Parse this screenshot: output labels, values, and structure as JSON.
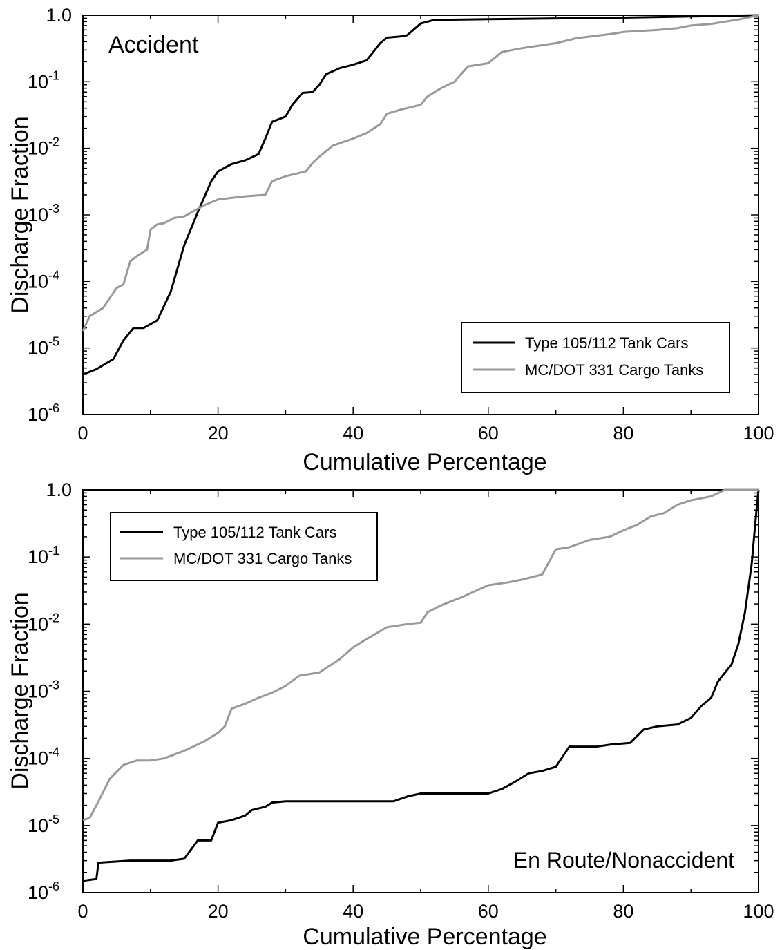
{
  "chart_data": [
    {
      "type": "line",
      "annotation": "Accident",
      "xlabel": "Cumulative Percentage",
      "ylabel": "Discharge Fraction",
      "xlim": [
        0,
        100
      ],
      "ylim": [
        1e-06,
        1.0
      ],
      "yscale": "log",
      "xticks": [
        0,
        20,
        40,
        60,
        80,
        100
      ],
      "xtick_labels": [
        "0",
        "20",
        "40",
        "60",
        "80",
        "100"
      ],
      "yticks": [
        {
          "value": 1e-06,
          "base": "10",
          "exp": "-6"
        },
        {
          "value": 1e-05,
          "base": "10",
          "exp": "-5"
        },
        {
          "value": 0.0001,
          "base": "10",
          "exp": "-4"
        },
        {
          "value": 0.001,
          "base": "10",
          "exp": "-3"
        },
        {
          "value": 0.01,
          "base": "10",
          "exp": "-2"
        },
        {
          "value": 0.1,
          "base": "10",
          "exp": "-1"
        },
        {
          "value": 1.0,
          "base": "1.0",
          "exp": ""
        }
      ],
      "legend_position": "lower-right",
      "series": [
        {
          "name": "Type 105/112 Tank Cars",
          "color": "#000000",
          "points": [
            [
              0,
              4e-06
            ],
            [
              2,
              4.8e-06
            ],
            [
              4.5,
              6.8e-06
            ],
            [
              6,
              1.3e-05
            ],
            [
              7.5,
              2e-05
            ],
            [
              9,
              2e-05
            ],
            [
              11,
              2.6e-05
            ],
            [
              13,
              7e-05
            ],
            [
              15,
              0.00035
            ],
            [
              17,
              0.0011
            ],
            [
              19,
              0.0032
            ],
            [
              20,
              0.0045
            ],
            [
              22,
              0.0058
            ],
            [
              24,
              0.0066
            ],
            [
              26,
              0.0082
            ],
            [
              27,
              0.014
            ],
            [
              28,
              0.025
            ],
            [
              30,
              0.03
            ],
            [
              31,
              0.045
            ],
            [
              32.5,
              0.068
            ],
            [
              34,
              0.07
            ],
            [
              35,
              0.09
            ],
            [
              36,
              0.13
            ],
            [
              38,
              0.16
            ],
            [
              40,
              0.18
            ],
            [
              42,
              0.21
            ],
            [
              44,
              0.38
            ],
            [
              45,
              0.46
            ],
            [
              47,
              0.48
            ],
            [
              48,
              0.5
            ],
            [
              50,
              0.75
            ],
            [
              52,
              0.85
            ],
            [
              60,
              0.87
            ],
            [
              80,
              0.92
            ],
            [
              100,
              1.0
            ]
          ]
        },
        {
          "name": "MC/DOT 331 Cargo Tanks",
          "color": "#999999",
          "points": [
            [
              0,
              1.8e-05
            ],
            [
              1,
              3e-05
            ],
            [
              3,
              4e-05
            ],
            [
              5,
              8e-05
            ],
            [
              6,
              9e-05
            ],
            [
              7,
              0.0002
            ],
            [
              8,
              0.00024
            ],
            [
              9.5,
              0.0003
            ],
            [
              10,
              0.0006
            ],
            [
              11,
              0.00072
            ],
            [
              12,
              0.00075
            ],
            [
              13.5,
              0.0009
            ],
            [
              15,
              0.00095
            ],
            [
              18,
              0.0014
            ],
            [
              20,
              0.0017
            ],
            [
              22,
              0.0018
            ],
            [
              24,
              0.0019
            ],
            [
              27,
              0.002
            ],
            [
              28,
              0.0032
            ],
            [
              30,
              0.0038
            ],
            [
              33,
              0.0045
            ],
            [
              34,
              0.006
            ],
            [
              35,
              0.0075
            ],
            [
              37,
              0.011
            ],
            [
              40,
              0.014
            ],
            [
              42,
              0.017
            ],
            [
              44,
              0.023
            ],
            [
              45,
              0.033
            ],
            [
              47,
              0.038
            ],
            [
              50,
              0.045
            ],
            [
              51,
              0.06
            ],
            [
              53,
              0.08
            ],
            [
              55,
              0.1
            ],
            [
              57,
              0.17
            ],
            [
              60,
              0.19
            ],
            [
              62,
              0.28
            ],
            [
              65,
              0.32
            ],
            [
              70,
              0.38
            ],
            [
              73,
              0.45
            ],
            [
              78,
              0.52
            ],
            [
              80,
              0.56
            ],
            [
              85,
              0.6
            ],
            [
              88,
              0.64
            ],
            [
              90,
              0.7
            ],
            [
              93,
              0.74
            ],
            [
              97,
              0.86
            ],
            [
              100,
              1.0
            ]
          ]
        }
      ]
    },
    {
      "type": "line",
      "annotation": "En Route/Nonaccident",
      "xlabel": "Cumulative Percentage",
      "ylabel": "Discharge Fraction",
      "xlim": [
        0,
        100
      ],
      "ylim": [
        1e-06,
        1.0
      ],
      "yscale": "log",
      "xticks": [
        0,
        20,
        40,
        60,
        80,
        100
      ],
      "xtick_labels": [
        "0",
        "20",
        "40",
        "60",
        "80",
        "100"
      ],
      "yticks": [
        {
          "value": 1e-06,
          "base": "10",
          "exp": "-6"
        },
        {
          "value": 1e-05,
          "base": "10",
          "exp": "-5"
        },
        {
          "value": 0.0001,
          "base": "10",
          "exp": "-4"
        },
        {
          "value": 0.001,
          "base": "10",
          "exp": "-3"
        },
        {
          "value": 0.01,
          "base": "10",
          "exp": "-2"
        },
        {
          "value": 0.1,
          "base": "10",
          "exp": "-1"
        },
        {
          "value": 1.0,
          "base": "1.0",
          "exp": ""
        }
      ],
      "legend_position": "top-left",
      "series": [
        {
          "name": "Type 105/112 Tank Cars",
          "color": "#000000",
          "points": [
            [
              0,
              1.5e-06
            ],
            [
              2,
              1.6e-06
            ],
            [
              2.3,
              2.8e-06
            ],
            [
              7,
              3e-06
            ],
            [
              13,
              3e-06
            ],
            [
              15,
              3.2e-06
            ],
            [
              17,
              6e-06
            ],
            [
              19,
              6e-06
            ],
            [
              20,
              1.1e-05
            ],
            [
              22,
              1.2e-05
            ],
            [
              24,
              1.4e-05
            ],
            [
              25,
              1.7e-05
            ],
            [
              27,
              1.9e-05
            ],
            [
              28,
              2.2e-05
            ],
            [
              30,
              2.3e-05
            ],
            [
              40,
              2.3e-05
            ],
            [
              46,
              2.3e-05
            ],
            [
              48,
              2.7e-05
            ],
            [
              50,
              3e-05
            ],
            [
              60,
              3e-05
            ],
            [
              62,
              3.5e-05
            ],
            [
              64,
              4.5e-05
            ],
            [
              66,
              6e-05
            ],
            [
              68,
              6.5e-05
            ],
            [
              70,
              7.5e-05
            ],
            [
              72,
              0.00015
            ],
            [
              76,
              0.00015
            ],
            [
              78,
              0.00016
            ],
            [
              81,
              0.00017
            ],
            [
              83,
              0.00027
            ],
            [
              85,
              0.0003
            ],
            [
              88,
              0.00032
            ],
            [
              90,
              0.0004
            ],
            [
              91.5,
              0.0006
            ],
            [
              93,
              0.0008
            ],
            [
              94,
              0.0014
            ],
            [
              96,
              0.0025
            ],
            [
              97,
              0.005
            ],
            [
              98,
              0.015
            ],
            [
              99,
              0.08
            ],
            [
              99.5,
              0.3
            ],
            [
              100,
              1.0
            ]
          ]
        },
        {
          "name": "MC/DOT 331 Cargo Tanks",
          "color": "#999999",
          "points": [
            [
              0,
              1.2e-05
            ],
            [
              1,
              1.3e-05
            ],
            [
              2,
              2e-05
            ],
            [
              4,
              5e-05
            ],
            [
              6,
              8e-05
            ],
            [
              8,
              9.3e-05
            ],
            [
              10,
              9.3e-05
            ],
            [
              12,
              0.0001
            ],
            [
              15,
              0.00013
            ],
            [
              18,
              0.00018
            ],
            [
              20,
              0.00024
            ],
            [
              21,
              0.0003
            ],
            [
              22,
              0.00055
            ],
            [
              24,
              0.00065
            ],
            [
              26,
              0.0008
            ],
            [
              28,
              0.00095
            ],
            [
              30,
              0.0012
            ],
            [
              32,
              0.0017
            ],
            [
              35,
              0.0019
            ],
            [
              38,
              0.003
            ],
            [
              40,
              0.0045
            ],
            [
              42,
              0.006
            ],
            [
              45,
              0.009
            ],
            [
              48,
              0.01
            ],
            [
              50,
              0.0105
            ],
            [
              51,
              0.015
            ],
            [
              53,
              0.019
            ],
            [
              56,
              0.025
            ],
            [
              60,
              0.038
            ],
            [
              63,
              0.042
            ],
            [
              65,
              0.046
            ],
            [
              68,
              0.055
            ],
            [
              70,
              0.13
            ],
            [
              72,
              0.14
            ],
            [
              75,
              0.18
            ],
            [
              78,
              0.2
            ],
            [
              80,
              0.25
            ],
            [
              82,
              0.3
            ],
            [
              84,
              0.4
            ],
            [
              86,
              0.45
            ],
            [
              88,
              0.6
            ],
            [
              90,
              0.7
            ],
            [
              93,
              0.8
            ],
            [
              95,
              1.0
            ],
            [
              100,
              1.0
            ]
          ]
        }
      ]
    }
  ]
}
